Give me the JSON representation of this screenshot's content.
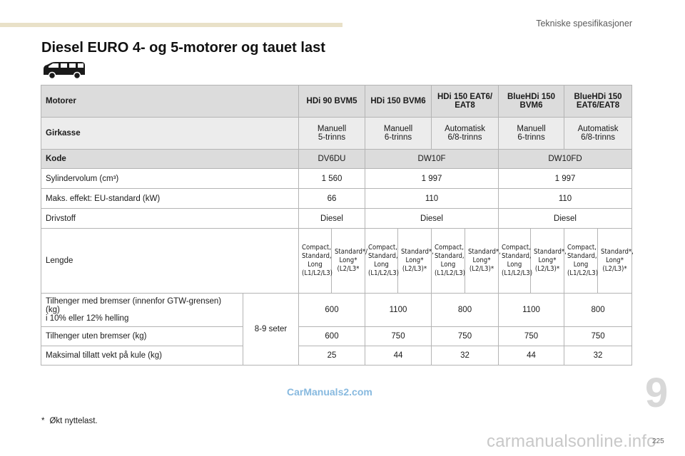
{
  "header": {
    "section_title": "Tekniske spesifikasjoner"
  },
  "heading": "Diesel EURO 4- og 5-motorer og tauet last",
  "table": {
    "motor_label": "Motorer",
    "engines": [
      "HDi 90 BVM5",
      "HDi 150 BVM6",
      "HDi 150 EAT6/ EAT8",
      "BlueHDi 150 BVM6",
      "BlueHDi 150 EAT6/EAT8"
    ],
    "gearbox_label": "Girkasse",
    "gearboxes": [
      {
        "type": "Manuell",
        "gears": "5-trinns"
      },
      {
        "type": "Manuell",
        "gears": "6-trinns"
      },
      {
        "type": "Automatisk",
        "gears": "6/8-trinns"
      },
      {
        "type": "Manuell",
        "gears": "6-trinns"
      },
      {
        "type": "Automatisk",
        "gears": "6/8-trinns"
      }
    ],
    "code_label": "Kode",
    "codes": [
      "DV6DU",
      "DW10F",
      "DW10FD"
    ],
    "displacement_label": "Sylindervolum (cm³)",
    "displacements": [
      "1 560",
      "1 997",
      "1 997"
    ],
    "power_label": "Maks. effekt: EU-standard (kW)",
    "powers": [
      "66",
      "110",
      "110"
    ],
    "fuel_label": "Drivstoff",
    "fuels": [
      "Diesel",
      "Diesel",
      "Diesel"
    ],
    "length_label": "Lengde",
    "length_a": {
      "l1": "Compact,",
      "l2": "Standard,",
      "l3": "Long",
      "l4": "(L1/L2/L3)"
    },
    "length_b1": {
      "l1": "Standard*/",
      "l2": "Long*",
      "l3": "(L2/L3*"
    },
    "length_b": {
      "l1": "Standard*,",
      "l2": "Long*",
      "l3": "(L2/L3)*"
    },
    "braked_label_1": "Tilhenger med bremser (innenfor GTW-grensen)",
    "braked_label_2": "(kg)",
    "braked_label_3": "i 10% eller 12% helling",
    "braked": [
      "600",
      "1100",
      "800",
      "1100",
      "800"
    ],
    "seats": "8-9 seter",
    "unbraked_label": "Tilhenger uten bremser (kg)",
    "unbraked": [
      "600",
      "750",
      "750",
      "750",
      "750"
    ],
    "ball_label": "Maksimal tillatt vekt på kule (kg)",
    "ball": [
      "25",
      "44",
      "32",
      "44",
      "32"
    ]
  },
  "footnote": {
    "star": "*",
    "text": "Økt nyttelast."
  },
  "chapter_number": "9",
  "watermark": "CarManuals2.com",
  "page_number": "225",
  "site_mark": "carmanualsonline.info"
}
